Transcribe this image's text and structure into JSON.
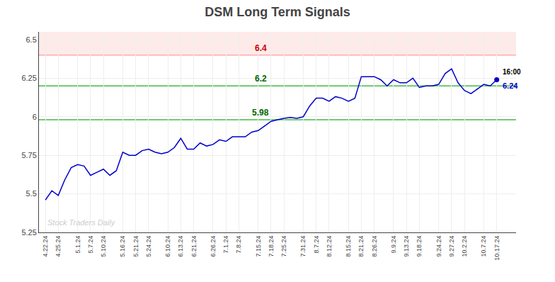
{
  "chart_data": {
    "type": "line",
    "title": "DSM Long Term Signals",
    "categories": [
      "4.22.24",
      null,
      "4.25.24",
      null,
      null,
      "5.1.24",
      null,
      "5.7.24",
      null,
      "5.10.24",
      null,
      null,
      "5.16.24",
      null,
      "5.21.24",
      null,
      "5.24.24",
      null,
      null,
      "6.10.24",
      null,
      "6.13.24",
      null,
      "6.21.24",
      null,
      null,
      "6.26.24",
      null,
      "7.1.24",
      null,
      "7.8.24",
      null,
      null,
      "7.15.24",
      null,
      "7.18.24",
      null,
      "7.25.24",
      null,
      null,
      "7.31.24",
      null,
      "8.7.24",
      null,
      "8.12.24",
      null,
      null,
      "8.15.24",
      null,
      "8.21.24",
      null,
      "8.26.24",
      null,
      null,
      "9.9.24",
      null,
      "9.13.24",
      null,
      "9.18.24",
      null,
      null,
      "9.24.24",
      null,
      "9.27.24",
      null,
      "10.2.24",
      null,
      null,
      "10.7.24",
      null,
      "10.17.24"
    ],
    "values": [
      5.46,
      5.52,
      5.49,
      5.59,
      5.67,
      5.69,
      5.68,
      5.62,
      5.64,
      5.66,
      5.62,
      5.65,
      5.77,
      5.75,
      5.75,
      5.78,
      5.79,
      5.77,
      5.76,
      5.77,
      5.8,
      5.86,
      5.79,
      5.79,
      5.83,
      5.81,
      5.82,
      5.85,
      5.84,
      5.87,
      5.87,
      5.87,
      5.9,
      5.91,
      5.94,
      5.97,
      5.98,
      5.99,
      5.995,
      5.99,
      6.0,
      6.07,
      6.12,
      6.12,
      6.1,
      6.13,
      6.12,
      6.1,
      6.12,
      6.26,
      6.26,
      6.26,
      6.24,
      6.2,
      6.24,
      6.22,
      6.22,
      6.25,
      6.19,
      6.2,
      6.2,
      6.21,
      6.28,
      6.31,
      6.22,
      6.17,
      6.15,
      6.18,
      6.21,
      6.2,
      6.24
    ],
    "color": "#0000cc",
    "ylim": [
      5.25,
      6.55
    ],
    "yticks": [
      5.25,
      5.5,
      5.75,
      6,
      6.25,
      6.5
    ],
    "grid": true,
    "hlines": [
      {
        "value": 6.4,
        "label": "6.4",
        "color": "#ffaaaa",
        "label_color": "#cc0000",
        "band": true
      },
      {
        "value": 6.2,
        "label": "6.2",
        "color": "#44bb44",
        "label_color": "#006600",
        "band": false
      },
      {
        "value": 5.98,
        "label": "5.98",
        "color": "#44bb44",
        "label_color": "#006600",
        "band": false
      }
    ],
    "last_point": {
      "label": "16:00",
      "label_color": "#000000",
      "value_label": "6.24",
      "value_color": "#0000cc"
    },
    "watermark": {
      "text": "Stock Traders Daily",
      "color": "#cccccc"
    }
  }
}
